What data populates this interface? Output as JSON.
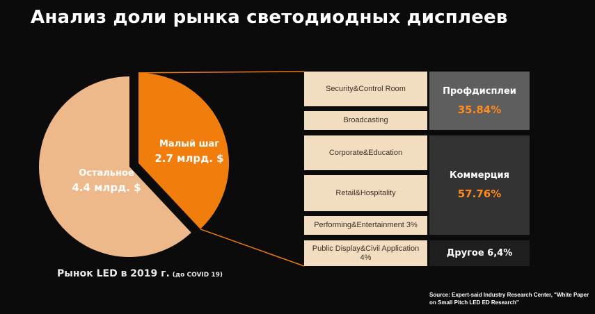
{
  "title": "Анализ доли рынка светодиодных дисплеев",
  "chart_data": {
    "type": "pie",
    "slices": [
      {
        "name": "Остальное",
        "label": "4.4 млрд. $",
        "value": 4.4,
        "color": "#edb98a"
      },
      {
        "name": "Малый шаг",
        "label": "2.7 млрд. $",
        "value": 2.7,
        "color": "#f07d0c"
      }
    ],
    "caption": "Рынок LED в 2019 г.",
    "caption_note": "(до COVID 19)"
  },
  "breakdown": {
    "applications": [
      "Security&Control Room",
      "Broadcasting",
      "Corporate&Education",
      "Retail&Hospitality",
      "Performing&Entertainment 3%",
      "Public Display&Civil Application 4%"
    ],
    "categories": [
      {
        "name": "Профдисплеи",
        "share": "35.84%",
        "color": "#5e5e5e"
      },
      {
        "name": "Коммерция",
        "share": "57.76%",
        "color": "#333333"
      },
      {
        "name": "Другое 6,4%",
        "share": "",
        "color": "#1e1e1e"
      }
    ],
    "connector_color": "#f07d0c"
  },
  "source": "Source: Expert-said Industry Research Center, \"White Paper on Small Pitch LED ED Research\""
}
